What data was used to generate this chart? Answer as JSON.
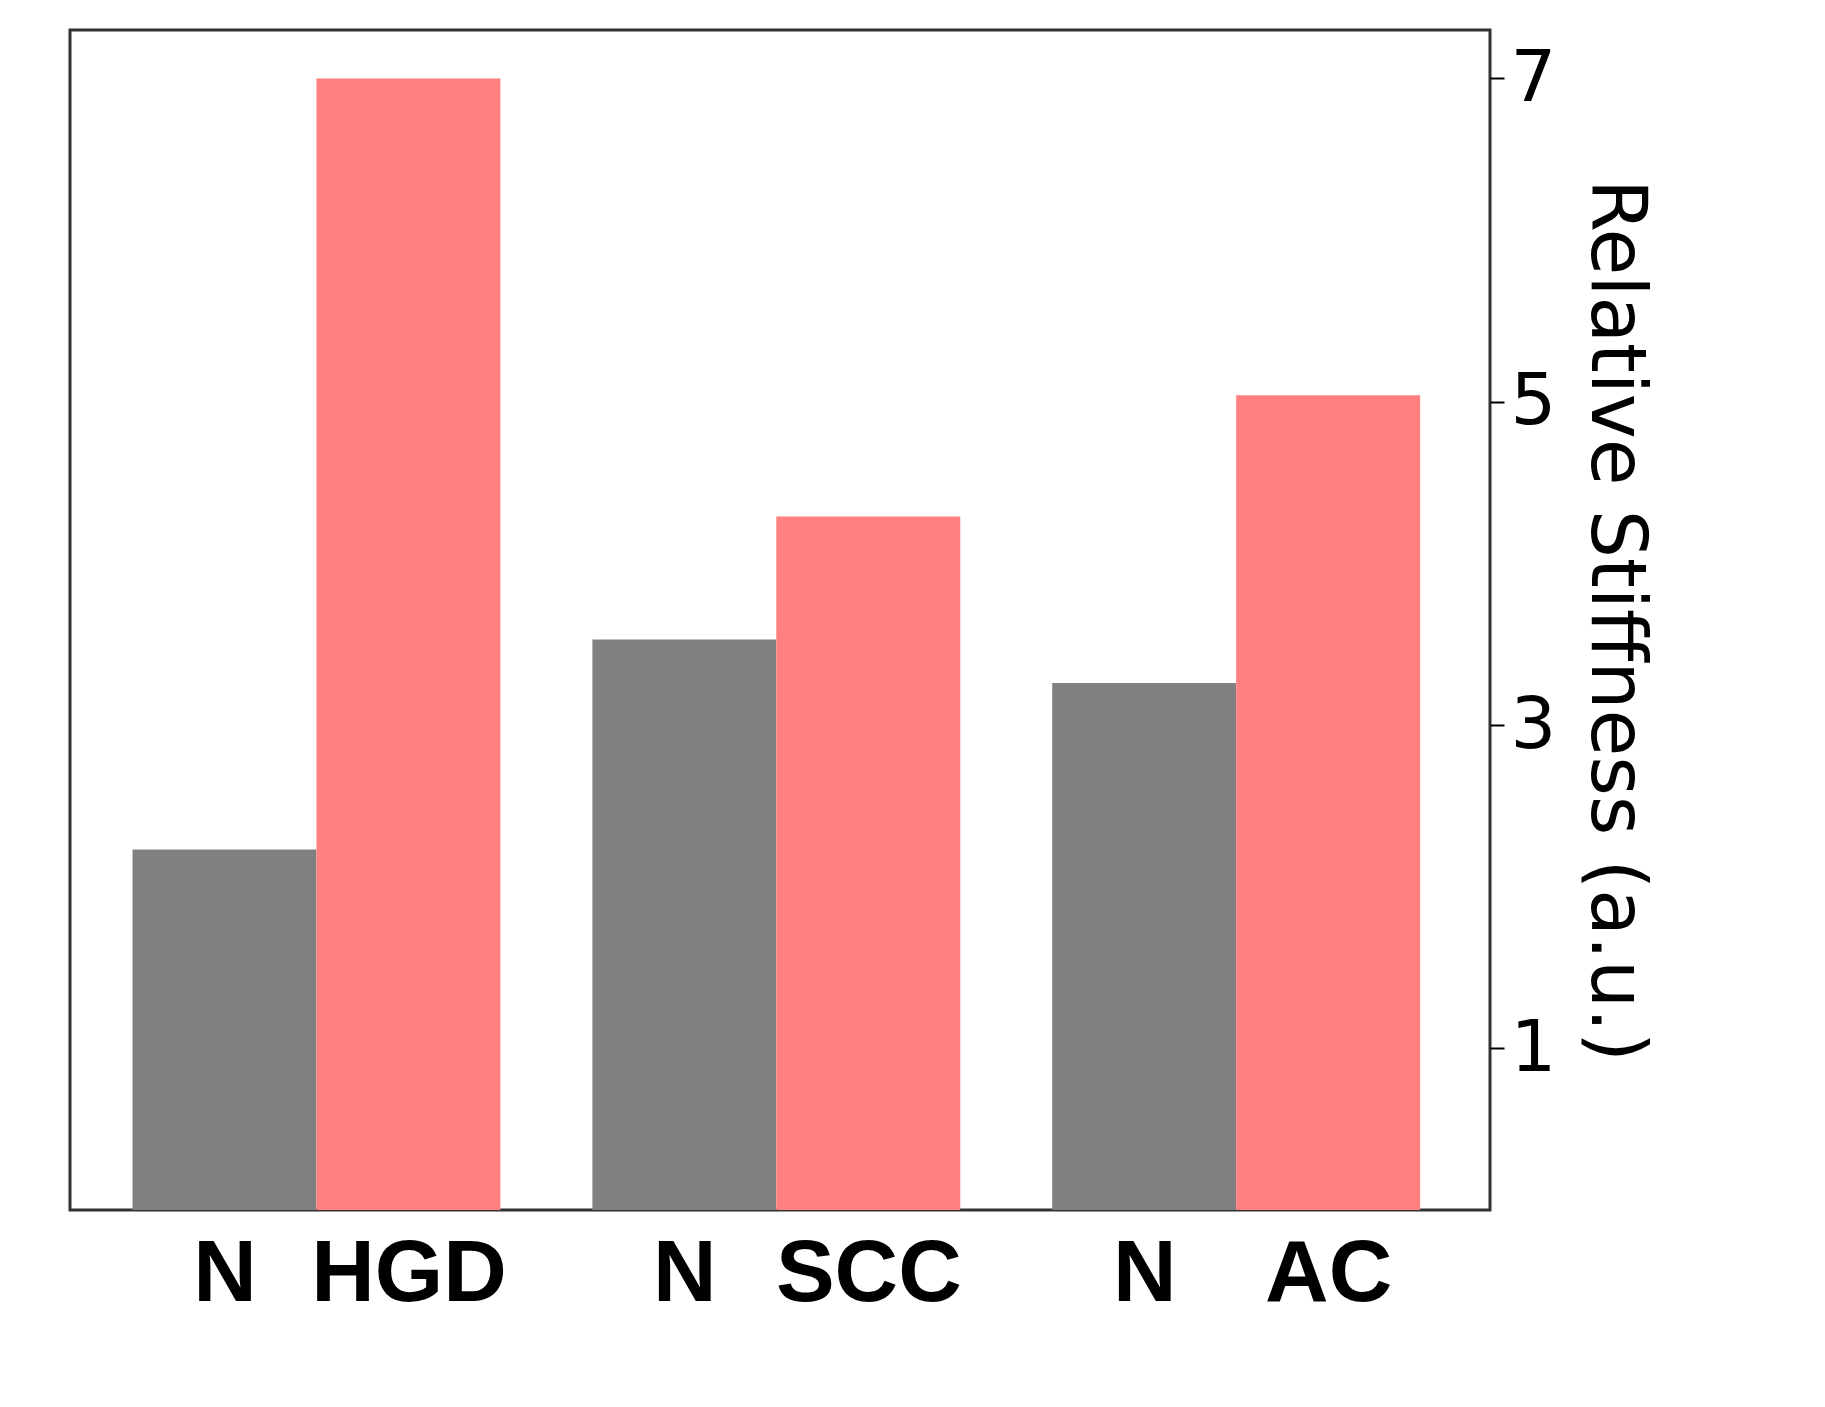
{
  "chart_data": {
    "type": "bar",
    "categories": [
      "N",
      "HGD",
      "N",
      "SCC",
      "N",
      "AC"
    ],
    "values": [
      2.23,
      7.0,
      3.53,
      4.29,
      3.26,
      5.04
    ],
    "colors": [
      "#808080",
      "#ff8080",
      "#808080",
      "#ff8080",
      "#808080",
      "#ff8080"
    ],
    "ylabel": "Relative Stiffness (a.u.)",
    "ylim": [
      0,
      7.3
    ],
    "yticks": [
      1,
      3,
      5,
      7
    ],
    "grid": false
  }
}
